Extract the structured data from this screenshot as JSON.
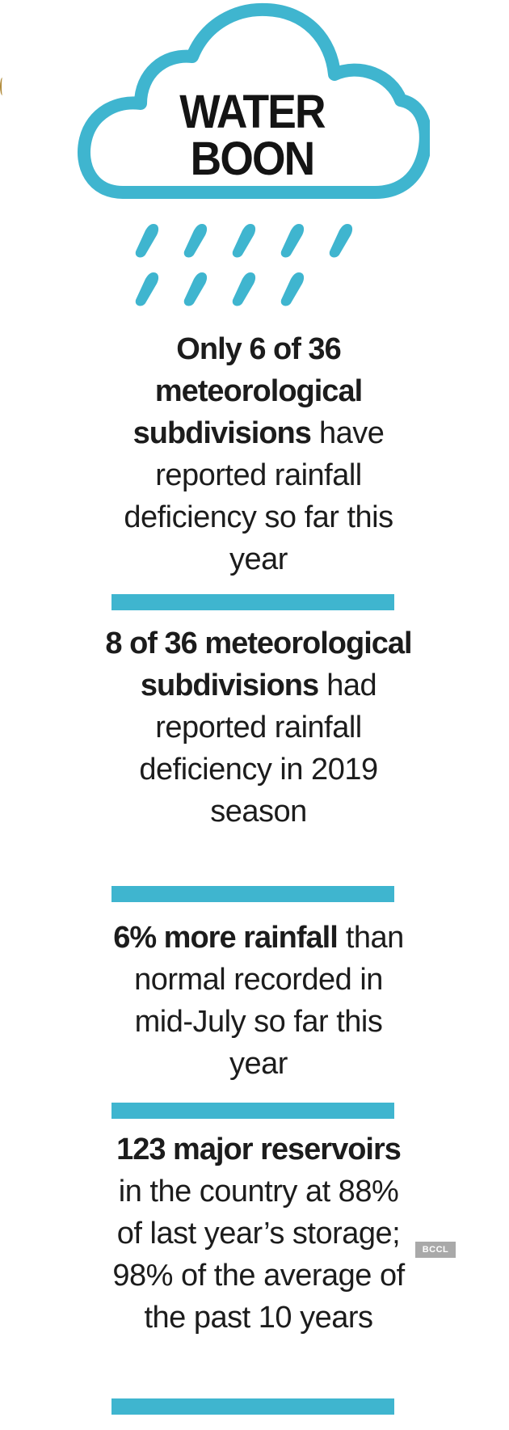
{
  "title": {
    "line1": "WATER",
    "line2": "BOON"
  },
  "colors": {
    "accent": "#3fb5cf",
    "text": "#1c1c1c",
    "badge": "#a9a9a9"
  },
  "icons": {
    "cloud": "cloud-icon",
    "rain": "raindrops-icon"
  },
  "facts": [
    {
      "bold": "Only 6 of 36 meteorological subdivisions",
      "normal": " have reported rainfall deficiency so far this year"
    },
    {
      "bold": "8 of 36 meteorological subdivisions",
      "normal": " had reported rainfall deficiency in 2019 season"
    },
    {
      "bold": "6% more rainfall",
      "normal": " than normal recorded in mid-July so far this year"
    },
    {
      "bold": "123 major reservoirs",
      "normal": " in the country at 88% of last year’s storage; 98% of the average of the past 10 years"
    }
  ],
  "watermark": "BCCL"
}
